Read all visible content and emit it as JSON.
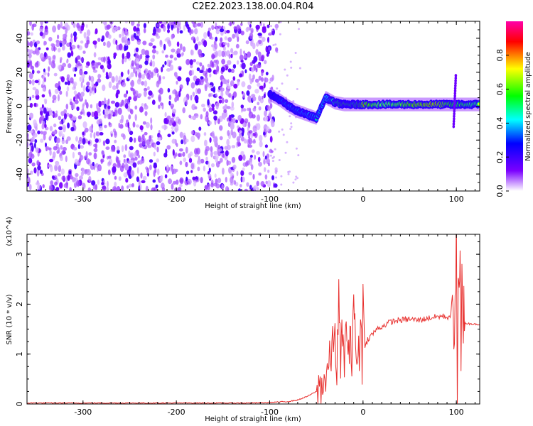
{
  "title": "C2E2.2023.138.00.04.R04",
  "chart_data": [
    {
      "type": "heatmap",
      "xlabel": "Height of straight line (km)",
      "ylabel": "Frequency (Hz)",
      "xlim": [
        -360,
        125
      ],
      "ylim": [
        -50,
        50
      ],
      "x_ticks": [
        -300,
        -200,
        -100,
        0,
        100
      ],
      "y_ticks": [
        -40,
        -20,
        0,
        20,
        40
      ],
      "colorbar": {
        "label": "Normalized spectral amplitude",
        "range": [
          0,
          1
        ],
        "ticks": [
          "0.0",
          "0.2",
          "0.4",
          "0.6",
          "0.8"
        ],
        "colors": [
          "#ffffff",
          "#7b00ff",
          "#0000ff",
          "#00ffff",
          "#00ff00",
          "#ffff00",
          "#ff0000",
          "#ff00aa"
        ]
      },
      "noise_region_x": [
        -360,
        -100
      ],
      "signal_track": [
        {
          "x": -100,
          "y": 7,
          "amp": 0.35
        },
        {
          "x": -90,
          "y": 4,
          "amp": 0.45
        },
        {
          "x": -80,
          "y": 0,
          "amp": 0.5
        },
        {
          "x": -70,
          "y": -3,
          "amp": 0.5
        },
        {
          "x": -60,
          "y": -5,
          "amp": 0.55
        },
        {
          "x": -50,
          "y": -7,
          "amp": 0.5
        },
        {
          "x": -40,
          "y": 5,
          "amp": 0.55
        },
        {
          "x": -30,
          "y": 2,
          "amp": 0.7
        },
        {
          "x": -20,
          "y": 1,
          "amp": 0.85
        },
        {
          "x": -10,
          "y": 1,
          "amp": 0.75
        },
        {
          "x": 0,
          "y": 1,
          "amp": 0.85
        },
        {
          "x": 20,
          "y": 1,
          "amp": 0.7
        },
        {
          "x": 40,
          "y": 1,
          "amp": 0.75
        },
        {
          "x": 60,
          "y": 1,
          "amp": 0.85
        },
        {
          "x": 80,
          "y": 1,
          "amp": 0.9
        },
        {
          "x": 95,
          "y": 1,
          "amp": 0.8
        },
        {
          "x": 110,
          "y": 1,
          "amp": 0.75
        },
        {
          "x": 125,
          "y": 1,
          "amp": 0.7
        }
      ]
    },
    {
      "type": "line",
      "xlabel": "Height of straight line (km)",
      "ylabel": "SNR (10 * v/v)",
      "y_scale_label": "(x10^4)",
      "xlim": [
        -360,
        125
      ],
      "ylim": [
        0,
        3.4
      ],
      "x_ticks": [
        -300,
        -200,
        -100,
        0,
        100
      ],
      "y_ticks": [
        0,
        1,
        2,
        3
      ],
      "series": [
        {
          "color": "#e8302e",
          "x": [
            -360,
            -300,
            -200,
            -120,
            -100,
            -80,
            -70,
            -60,
            -50,
            -45,
            -40,
            -35,
            -30,
            -28,
            -26,
            -24,
            -22,
            -20,
            -18,
            -16,
            -14,
            -12,
            -10,
            -8,
            -6,
            -4,
            -2,
            -1,
            0,
            2,
            5,
            10,
            15,
            20,
            25,
            30,
            40,
            50,
            60,
            70,
            80,
            85,
            90,
            95,
            98,
            100,
            101,
            102,
            103,
            104,
            105,
            106,
            107,
            108,
            110,
            115,
            120,
            125
          ],
          "y": [
            0.02,
            0.02,
            0.02,
            0.02,
            0.03,
            0.05,
            0.08,
            0.15,
            0.25,
            0.4,
            0.5,
            0.9,
            1.4,
            0.6,
            2.2,
            0.7,
            1.6,
            0.5,
            1.9,
            0.8,
            1.2,
            1.0,
            2.3,
            1.0,
            0.9,
            1.0,
            2.0,
            0.4,
            2.4,
            1.1,
            1.3,
            1.4,
            1.5,
            1.55,
            1.6,
            1.65,
            1.68,
            1.7,
            1.68,
            1.72,
            1.75,
            1.76,
            1.74,
            1.78,
            1.6,
            3.4,
            0.2,
            2.6,
            1.9,
            2.7,
            0.7,
            2.4,
            1.6,
            1.9,
            1.62,
            1.6,
            1.62,
            1.58
          ]
        }
      ]
    }
  ]
}
